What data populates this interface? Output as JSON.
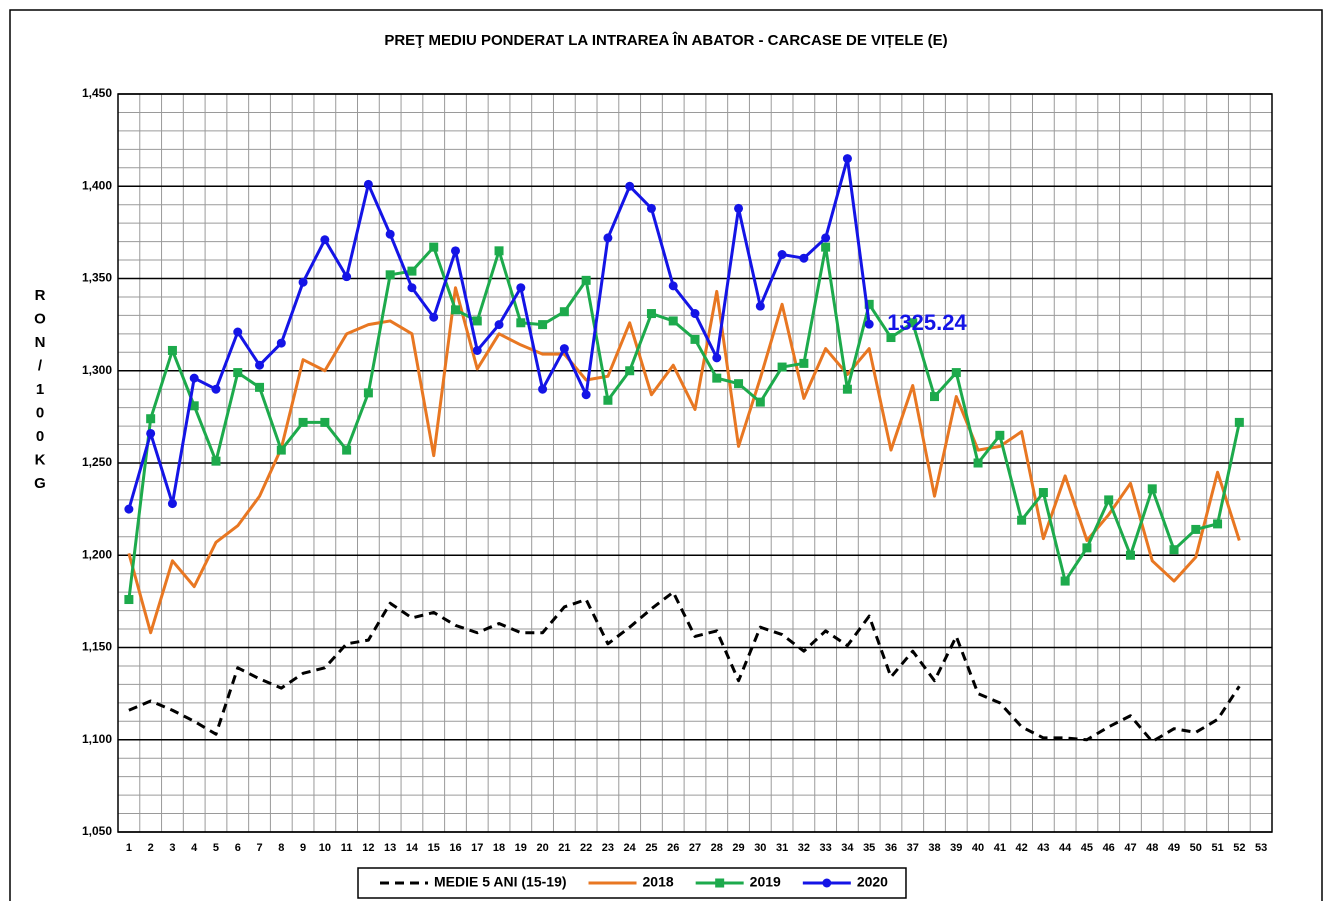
{
  "chart_data": {
    "type": "line",
    "title": "PREŢ MEDIU PONDERAT LA INTRAREA ÎN ABATOR - CARCASE DE VIȚELE (E)",
    "ylabel": "RON / 100 KG",
    "categories": [
      "1",
      "2",
      "3",
      "4",
      "5",
      "6",
      "7",
      "8",
      "9",
      "10",
      "11",
      "12",
      "13",
      "14",
      "15",
      "16",
      "17",
      "18",
      "19",
      "20",
      "21",
      "22",
      "23",
      "24",
      "25",
      "26",
      "27",
      "28",
      "29",
      "30",
      "31",
      "32",
      "33",
      "34",
      "35",
      "36",
      "37",
      "38",
      "39",
      "40",
      "41",
      "42",
      "43",
      "44",
      "45",
      "46",
      "47",
      "48",
      "49",
      "50",
      "51",
      "52",
      "53"
    ],
    "series": [
      {
        "name": "MEDIE 5 ANI (15-19)",
        "color": "#000000",
        "dash": true,
        "marker": null,
        "values": [
          1116,
          1121,
          1116,
          1110,
          1103,
          1139,
          1133,
          1128,
          1136,
          1139,
          1152,
          1154,
          1174,
          1166,
          1169,
          1162,
          1158,
          1163,
          1158,
          1158,
          1172,
          1176,
          1152,
          1161,
          1171,
          1180,
          1156,
          1159,
          1132,
          1161,
          1157,
          1148,
          1159,
          1151,
          1167,
          1134,
          1148,
          1132,
          1156,
          1125,
          1120,
          1107,
          1101,
          1101,
          1100,
          1107,
          1113,
          1099,
          1106,
          1104,
          1111,
          1129,
          null
        ]
      },
      {
        "name": "2018",
        "color": "#e87722",
        "dash": false,
        "marker": null,
        "values": [
          1201,
          1158,
          1197,
          1183,
          1207,
          1216,
          1232,
          1258,
          1306,
          1300,
          1320,
          1325,
          1327,
          1320,
          1254,
          1345,
          1301,
          1320,
          1314,
          1309,
          1309,
          1295,
          1297,
          1326,
          1287,
          1303,
          1279,
          1343,
          1259,
          1296,
          1336,
          1285,
          1312,
          1298,
          1312,
          1257,
          1292,
          1232,
          1286,
          1257,
          1259,
          1267,
          1209,
          1243,
          1208,
          1222,
          1239,
          1197,
          1186,
          1199,
          1245,
          1208,
          null
        ]
      },
      {
        "name": "2019",
        "color": "#1daa4c",
        "dash": false,
        "marker": "square",
        "values": [
          1176,
          1274,
          1311,
          1281,
          1251,
          1299,
          1291,
          1257,
          1272,
          1272,
          1257,
          1288,
          1352,
          1354,
          1367,
          1333,
          1327,
          1365,
          1326,
          1325,
          1332,
          1349,
          1284,
          1300,
          1331,
          1327,
          1317,
          1296,
          1293,
          1283,
          1302,
          1304,
          1367,
          1290,
          1336,
          1318,
          1326,
          1286,
          1299,
          1250,
          1265,
          1219,
          1234,
          1186,
          1204,
          1230,
          1200,
          1236,
          1203,
          1214,
          1217,
          1272,
          null
        ]
      },
      {
        "name": "2020",
        "color": "#1414e6",
        "dash": false,
        "marker": "circle",
        "values": [
          1225,
          1266,
          1228,
          1296,
          1290,
          1321,
          1303,
          1315,
          1348,
          1371,
          1351,
          1401,
          1374,
          1345,
          1329,
          1365,
          1311,
          1325,
          1345,
          1290,
          1312,
          1287,
          1372,
          1400,
          1388,
          1346,
          1331,
          1307,
          1388,
          1335,
          1363,
          1361,
          1372,
          1415,
          1325.24,
          null,
          null,
          null,
          null,
          null,
          null,
          null,
          null,
          null,
          null,
          null,
          null,
          null,
          null,
          null,
          null,
          null,
          null
        ]
      }
    ],
    "annotation": {
      "text": "1325.24",
      "color": "#1414e6"
    },
    "ylim": [
      1050,
      1450
    ],
    "yticks": [
      {
        "value": 1050,
        "label": "1,050"
      },
      {
        "value": 1100,
        "label": "1,100"
      },
      {
        "value": 1150,
        "label": "1,150"
      },
      {
        "value": 1200,
        "label": "1,200"
      },
      {
        "value": 1250,
        "label": "1,250"
      },
      {
        "value": 1300,
        "label": "1,300"
      },
      {
        "value": 1350,
        "label": "1,350"
      },
      {
        "value": 1400,
        "label": "1,400"
      },
      {
        "value": 1450,
        "label": "1,450"
      }
    ],
    "y_minor_step": 10,
    "grid": true,
    "legend": "bottom"
  }
}
